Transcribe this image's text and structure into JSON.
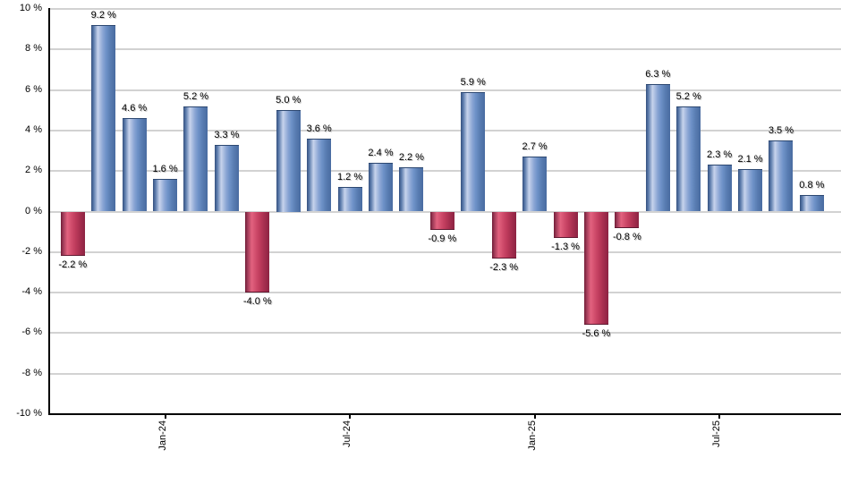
{
  "chart_data": {
    "type": "bar",
    "title": "",
    "xlabel": "",
    "ylabel": "",
    "unit": "%",
    "ylim": [
      -10,
      10
    ],
    "y_tick_step": 2,
    "grid": true,
    "legend": false,
    "bar_count": 25,
    "values": [
      -2.2,
      9.2,
      4.6,
      1.6,
      5.2,
      3.3,
      -4.0,
      5.0,
      3.6,
      1.2,
      2.4,
      2.2,
      -0.9,
      5.9,
      -2.3,
      2.7,
      -1.3,
      -5.6,
      -0.8,
      6.3,
      5.2,
      2.3,
      2.1,
      3.5,
      0.8
    ],
    "bar_labels": [
      "-2.2 %",
      "9.2 %",
      "4.6 %",
      "1.6 %",
      "5.2 %",
      "3.3 %",
      "-4.0 %",
      "5.0 %",
      "3.6 %",
      "1.2 %",
      "2.4 %",
      "2.2 %",
      "-0.9 %",
      "5.9 %",
      "-2.3 %",
      "2.7 %",
      "-1.3 %",
      "-5.6 %",
      "-0.8 %",
      "6.3 %",
      "5.2 %",
      "2.3 %",
      "2.1 %",
      "3.5 %",
      "0.8 %"
    ],
    "y_ticks": [
      10,
      8,
      6,
      4,
      2,
      0,
      -2,
      -4,
      -6,
      -8,
      -10
    ],
    "y_tick_labels": [
      "10 %",
      "8 %",
      "6 %",
      "4 %",
      "2 %",
      "0 %",
      "-2 %",
      "-4 %",
      "-6 %",
      "-8 %",
      "-10 %"
    ],
    "x_ticks": [
      {
        "label": "Jan-24",
        "index": 3
      },
      {
        "label": "Jul-24",
        "index": 9
      },
      {
        "label": "Jan-25",
        "index": 15
      },
      {
        "label": "Jul-25",
        "index": 21
      }
    ],
    "colors": {
      "positive_bar_mid": "#6d91c7",
      "positive_bar_highlight": "#c7d3ec",
      "positive_bar_edge": "#35517f",
      "negative_bar_mid": "#bd3a5b",
      "negative_bar_highlight": "#e2627f",
      "negative_bar_edge": "#701d37",
      "gridline": "#d2d2d2",
      "axis": "#000000",
      "label_text": "#000000"
    }
  }
}
